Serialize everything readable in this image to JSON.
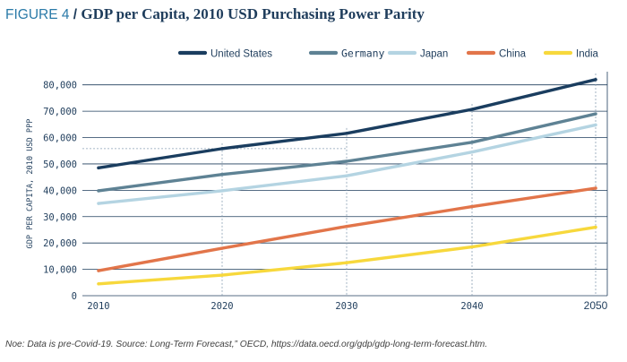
{
  "figure": {
    "label": "FIGURE 4",
    "separator": "/",
    "title": "GDP per Capita, 2010 USD Purchasing Power   Parity"
  },
  "note": "Noe: Data is pre-Covid-19. Source: Long-Term Forecast,” OECD,   https://data.oecd.org/gdp/gdp-long-term-forecast.htm.",
  "chart_data": {
    "type": "line",
    "title": "GDP per Capita, 2010 USD Purchasing Power   Parity",
    "xlabel": "",
    "ylabel": "GDP PER CAPITA, 2010 USD PPP",
    "x": [
      2010,
      2020,
      2030,
      2040,
      2050
    ],
    "x_tick_labels": [
      "2010",
      "2020",
      "2030",
      "2040",
      "2050"
    ],
    "ylim": [
      0,
      85000
    ],
    "y_ticks": [
      0,
      10000,
      20000,
      30000,
      40000,
      50000,
      60000,
      70000,
      80000
    ],
    "y_tick_labels": [
      "0",
      "10,000",
      "20,000",
      "30,000",
      "40,000",
      "50,000",
      "60,000",
      "70,000",
      "80,000"
    ],
    "grid": "horizontal",
    "legend_position": "top",
    "series": [
      {
        "name": "United States",
        "color": "#1a3d5f",
        "values": [
          48500,
          55800,
          61600,
          70700,
          82000
        ]
      },
      {
        "name": "Germany",
        "color": "#5e8294",
        "values": [
          39800,
          46000,
          51000,
          58200,
          69000
        ]
      },
      {
        "name": "Japan",
        "color": "#b4d4e2",
        "values": [
          35000,
          39800,
          45500,
          54500,
          64800
        ]
      },
      {
        "name": "China",
        "color": "#e2754a",
        "values": [
          9500,
          18000,
          26300,
          33800,
          40800
        ]
      },
      {
        "name": "India",
        "color": "#f7d83c",
        "values": [
          4500,
          7800,
          12500,
          18500,
          26000
        ]
      }
    ]
  }
}
